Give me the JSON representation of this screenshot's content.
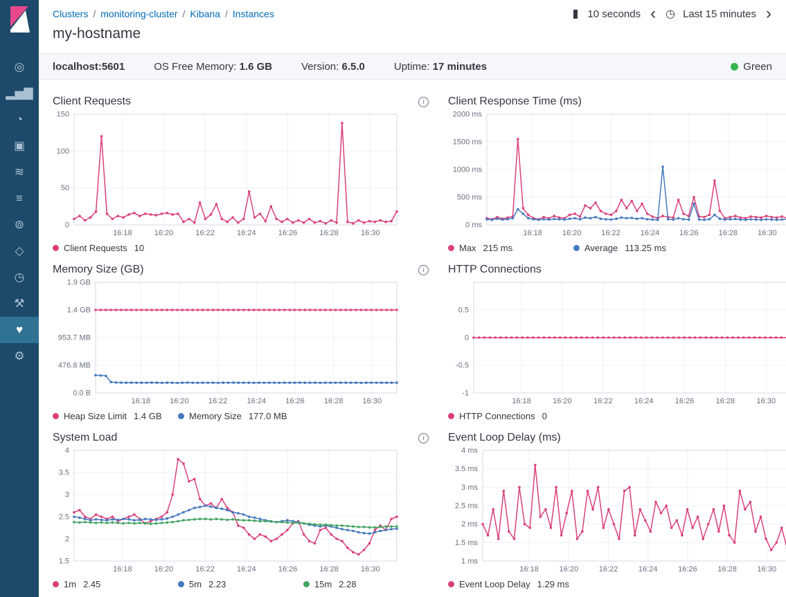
{
  "colors": {
    "pink": "#d9407c",
    "blue": "#4679bd",
    "green": "#44a463",
    "grid": "#eef0f4",
    "border": "#d3dae6"
  },
  "breadcrumb": {
    "items": [
      "Clusters",
      "monitoring-cluster",
      "Kibana",
      "Instances"
    ]
  },
  "toolbar": {
    "refresh_interval": "10 seconds",
    "time_range": "Last 15 minutes"
  },
  "page": {
    "title": "my-hostname"
  },
  "status_bar": {
    "host": "localhost:5601",
    "items": [
      {
        "label": "OS Free Memory:",
        "value": "1.6 GB"
      },
      {
        "label": "Version:",
        "value": "6.5.0"
      },
      {
        "label": "Uptime:",
        "value": "17 minutes"
      }
    ],
    "health": "Green",
    "health_color": "#36b34f"
  },
  "sidebar": {
    "items": [
      {
        "id": "discover",
        "glyph": "◎"
      },
      {
        "id": "visualize",
        "glyph": "▂▅▇"
      },
      {
        "id": "dashboard",
        "glyph": "◔"
      },
      {
        "id": "canvas",
        "glyph": "▣"
      },
      {
        "id": "timelion",
        "glyph": "≋"
      },
      {
        "id": "logs",
        "glyph": "≡"
      },
      {
        "id": "apm",
        "glyph": "⊚"
      },
      {
        "id": "infrastructure",
        "glyph": "◇"
      },
      {
        "id": "uptime",
        "glyph": "◷"
      },
      {
        "id": "dev-tools",
        "glyph": "⚒"
      },
      {
        "id": "monitoring",
        "glyph": "♥",
        "selected": true
      },
      {
        "id": "management",
        "glyph": "⚙"
      }
    ]
  },
  "chart_data": [
    {
      "type": "line",
      "title": "Client Requests",
      "ylim": [
        0,
        150
      ],
      "yticks": {
        "values": [
          0,
          50,
          100,
          150
        ],
        "labels": [
          "0",
          "50",
          "100",
          "150"
        ]
      },
      "xticks": {
        "pos": [
          0.15,
          0.278,
          0.406,
          0.534,
          0.662,
          0.79,
          0.918
        ],
        "labels": [
          "16:18",
          "16:20",
          "16:22",
          "16:24",
          "16:26",
          "16:28",
          "16:30"
        ]
      },
      "series": [
        {
          "name": "Client Requests",
          "value": "10",
          "color": "pink",
          "values": [
            8,
            12,
            6,
            10,
            18,
            120,
            15,
            8,
            12,
            10,
            14,
            16,
            12,
            15,
            14,
            13,
            15,
            16,
            14,
            15,
            4,
            8,
            3,
            30,
            8,
            14,
            28,
            8,
            4,
            10,
            3,
            8,
            45,
            10,
            15,
            5,
            25,
            8,
            4,
            8,
            3,
            6,
            3,
            8,
            3,
            5,
            2,
            6,
            3,
            138,
            4,
            2,
            6,
            3,
            5,
            4,
            6,
            4,
            5,
            18
          ]
        }
      ]
    },
    {
      "type": "line",
      "title": "Client Response Time (ms)",
      "ylim": [
        0,
        2000
      ],
      "yticks": {
        "values": [
          0,
          500,
          1000,
          1500,
          2000
        ],
        "labels": [
          "0 ms",
          "500 ms",
          "1000 ms",
          "1500 ms",
          "2000 ms"
        ]
      },
      "xticks": {
        "pos": [
          0.15,
          0.278,
          0.406,
          0.534,
          0.662,
          0.79,
          0.918
        ],
        "labels": [
          "16:18",
          "16:20",
          "16:22",
          "16:24",
          "16:26",
          "16:28",
          "16:30"
        ]
      },
      "series": [
        {
          "name": "Max",
          "value": "215 ms",
          "color": "pink",
          "values": [
            120,
            100,
            140,
            110,
            130,
            150,
            1550,
            300,
            180,
            120,
            100,
            140,
            120,
            160,
            130,
            120,
            180,
            200,
            150,
            350,
            300,
            400,
            250,
            200,
            180,
            250,
            450,
            300,
            430,
            250,
            380,
            200,
            150,
            120,
            160,
            140,
            130,
            450,
            200,
            160,
            500,
            150,
            140,
            180,
            800,
            250,
            120,
            140,
            160,
            130,
            120,
            150,
            140,
            130,
            160,
            140,
            130,
            150,
            120,
            215
          ]
        },
        {
          "name": "Average",
          "value": "113.25 ms",
          "color": "blue",
          "values": [
            100,
            90,
            110,
            95,
            100,
            120,
            280,
            200,
            120,
            100,
            90,
            100,
            95,
            105,
            100,
            95,
            110,
            120,
            100,
            130,
            120,
            140,
            110,
            100,
            95,
            110,
            130,
            120,
            125,
            110,
            120,
            100,
            95,
            90,
            1050,
            100,
            95,
            120,
            100,
            95,
            380,
            95,
            90,
            100,
            180,
            110,
            95,
            100,
            105,
            95,
            90,
            100,
            95,
            90,
            100,
            95,
            90,
            95,
            100,
            113
          ]
        }
      ]
    },
    {
      "type": "line",
      "title": "Memory Size (GB)",
      "ylim": [
        0,
        1907.3
      ],
      "yticks": {
        "values": [
          0,
          476.8,
          953.7,
          1430.5,
          1907.3
        ],
        "labels": [
          "0.0 B",
          "476.8 MB",
          "953.7 MB",
          "1.4 GB",
          "1.9 GB"
        ]
      },
      "xticks": {
        "pos": [
          0.15,
          0.278,
          0.406,
          0.534,
          0.662,
          0.79,
          0.918
        ],
        "labels": [
          "16:18",
          "16:20",
          "16:22",
          "16:24",
          "16:26",
          "16:28",
          "16:30"
        ]
      },
      "series": [
        {
          "name": "Heap Size Limit",
          "value": "1.4 GB",
          "color": "pink",
          "constant": 1430.5,
          "points": 60
        },
        {
          "name": "Memory Size",
          "value": "177.0 MB",
          "color": "blue",
          "values": [
            305,
            300,
            295,
            188,
            180,
            178,
            176,
            178,
            175,
            177,
            175,
            178,
            176,
            174,
            177,
            175,
            173,
            176,
            178,
            175,
            174,
            176,
            175,
            177,
            174,
            176,
            175,
            178,
            176,
            175,
            177,
            174,
            176,
            175,
            177,
            176,
            174,
            177,
            175,
            176,
            178,
            175,
            177,
            176,
            174,
            176,
            177,
            175,
            176,
            177,
            175,
            176,
            174,
            177,
            176,
            175,
            177,
            176,
            175,
            177
          ]
        }
      ]
    },
    {
      "type": "line",
      "title": "HTTP Connections",
      "ylim": [
        -1,
        1
      ],
      "yticks": {
        "values": [
          -1,
          -0.5,
          0,
          0.5
        ],
        "labels": [
          "-1",
          "-0.5",
          "0",
          "0.5"
        ]
      },
      "xticks": {
        "pos": [
          0.15,
          0.278,
          0.406,
          0.534,
          0.662,
          0.79,
          0.918
        ],
        "labels": [
          "16:18",
          "16:20",
          "16:22",
          "16:24",
          "16:26",
          "16:28",
          "16:30"
        ]
      },
      "series": [
        {
          "name": "HTTP Connections",
          "value": "0",
          "color": "pink",
          "constant": 0,
          "points": 60
        }
      ]
    },
    {
      "type": "line",
      "title": "System Load",
      "ylim": [
        1.5,
        4
      ],
      "yticks": {
        "values": [
          1.5,
          2,
          2.5,
          3,
          3.5,
          4
        ],
        "labels": [
          "1.5",
          "2",
          "2.5",
          "3",
          "3.5",
          "4"
        ]
      },
      "xticks": {
        "pos": [
          0.15,
          0.278,
          0.406,
          0.534,
          0.662,
          0.79,
          0.918
        ],
        "labels": [
          "16:18",
          "16:20",
          "16:22",
          "16:24",
          "16:26",
          "16:28",
          "16:30"
        ]
      },
      "series": [
        {
          "name": "1m",
          "value": "2.45",
          "color": "pink",
          "values": [
            2.6,
            2.65,
            2.5,
            2.45,
            2.55,
            2.5,
            2.45,
            2.5,
            2.4,
            2.45,
            2.5,
            2.55,
            2.45,
            2.35,
            2.4,
            2.45,
            2.5,
            2.6,
            3.0,
            3.8,
            3.7,
            3.3,
            3.35,
            2.9,
            2.75,
            2.8,
            2.7,
            2.9,
            2.7,
            2.6,
            2.3,
            2.25,
            2.1,
            2.0,
            2.1,
            2.05,
            1.95,
            2.0,
            2.1,
            2.2,
            2.35,
            2.4,
            2.1,
            1.95,
            1.9,
            2.2,
            2.25,
            2.1,
            2.0,
            1.95,
            1.8,
            1.7,
            1.65,
            1.75,
            1.9,
            2.2,
            2.3,
            2.2,
            2.45,
            2.5
          ]
        },
        {
          "name": "5m",
          "value": "2.23",
          "color": "blue",
          "values": [
            2.5,
            2.48,
            2.45,
            2.42,
            2.44,
            2.43,
            2.42,
            2.44,
            2.43,
            2.45,
            2.44,
            2.42,
            2.43,
            2.45,
            2.44,
            2.43,
            2.44,
            2.46,
            2.5,
            2.55,
            2.6,
            2.65,
            2.7,
            2.72,
            2.75,
            2.73,
            2.7,
            2.68,
            2.65,
            2.6,
            2.58,
            2.55,
            2.5,
            2.48,
            2.45,
            2.42,
            2.4,
            2.38,
            2.4,
            2.42,
            2.4,
            2.38,
            2.35,
            2.32,
            2.3,
            2.28,
            2.3,
            2.28,
            2.25,
            2.22,
            2.2,
            2.18,
            2.15,
            2.13,
            2.12,
            2.15,
            2.18,
            2.2,
            2.22,
            2.23
          ]
        },
        {
          "name": "15m",
          "value": "2.28",
          "color": "green",
          "values": [
            2.38,
            2.37,
            2.38,
            2.37,
            2.36,
            2.37,
            2.36,
            2.37,
            2.36,
            2.35,
            2.36,
            2.35,
            2.36,
            2.35,
            2.34,
            2.35,
            2.36,
            2.37,
            2.38,
            2.4,
            2.42,
            2.43,
            2.44,
            2.45,
            2.45,
            2.44,
            2.45,
            2.44,
            2.43,
            2.44,
            2.43,
            2.42,
            2.42,
            2.41,
            2.4,
            2.4,
            2.39,
            2.38,
            2.38,
            2.37,
            2.36,
            2.36,
            2.35,
            2.34,
            2.33,
            2.32,
            2.32,
            2.31,
            2.3,
            2.3,
            2.29,
            2.28,
            2.27,
            2.27,
            2.26,
            2.26,
            2.27,
            2.28,
            2.28,
            2.28
          ]
        }
      ]
    },
    {
      "type": "line",
      "title": "Event Loop Delay (ms)",
      "ylim": [
        1,
        4
      ],
      "yticks": {
        "values": [
          1,
          1.5,
          2,
          2.5,
          3,
          3.5,
          4
        ],
        "labels": [
          "1 ms",
          "1.5 ms",
          "2 ms",
          "2.5 ms",
          "3 ms",
          "3.5 ms",
          "4 ms"
        ]
      },
      "xticks": {
        "pos": [
          0.15,
          0.278,
          0.406,
          0.534,
          0.662,
          0.79,
          0.918
        ],
        "labels": [
          "16:18",
          "16:20",
          "16:22",
          "16:24",
          "16:26",
          "16:28",
          "16:30"
        ]
      },
      "series": [
        {
          "name": "Event Loop Delay",
          "value": "1.29 ms",
          "color": "pink",
          "values": [
            2.0,
            1.7,
            2.4,
            1.6,
            2.9,
            1.8,
            1.6,
            3.0,
            2.0,
            1.9,
            3.6,
            2.2,
            2.4,
            1.9,
            3.0,
            1.7,
            2.3,
            2.9,
            1.6,
            1.8,
            2.9,
            2.4,
            3.0,
            1.9,
            2.4,
            2.0,
            1.6,
            2.9,
            3.0,
            1.7,
            2.4,
            2.1,
            1.8,
            2.6,
            2.3,
            2.5,
            1.9,
            2.1,
            1.7,
            2.4,
            1.9,
            2.2,
            1.6,
            2.0,
            2.4,
            1.8,
            2.5,
            1.7,
            1.5,
            2.9,
            2.4,
            2.6,
            1.8,
            2.2,
            1.6,
            1.3,
            1.5,
            1.9,
            1.35,
            1.29
          ]
        }
      ]
    }
  ]
}
